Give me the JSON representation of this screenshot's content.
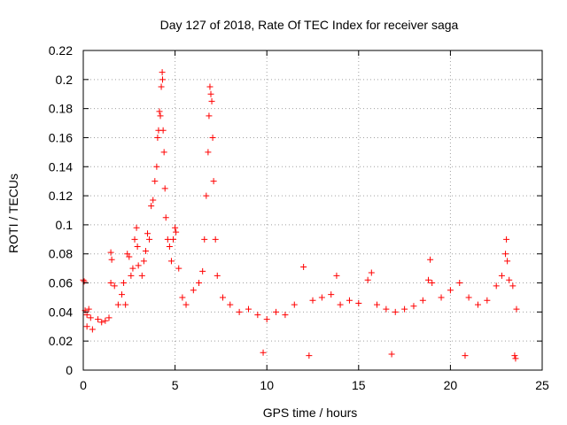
{
  "chart_data": {
    "type": "scatter",
    "title": "Day 127 of 2018, Rate Of TEC Index for receiver saga",
    "xlabel": "GPS time / hours",
    "ylabel": "ROTI / TECUs",
    "xlim": [
      0,
      25
    ],
    "ylim": [
      0,
      0.22
    ],
    "x_ticks": [
      0,
      5,
      10,
      15,
      20,
      25
    ],
    "x_tick_labels": [
      "0",
      "5",
      "10",
      "15",
      "20",
      "25"
    ],
    "y_ticks": [
      0,
      0.02,
      0.04,
      0.06,
      0.08,
      0.1,
      0.12,
      0.14,
      0.16,
      0.18,
      0.2,
      0.22
    ],
    "y_tick_labels": [
      "0",
      "0.02",
      "0.04",
      "0.06",
      "0.08",
      "0.1",
      "0.12",
      "0.14",
      "0.16",
      "0.18",
      "0.2",
      "0.22"
    ],
    "grid": true,
    "marker": "plus",
    "color": "#ff0000",
    "series": [
      {
        "name": "ROTI",
        "points": [
          [
            0.0,
            0.062
          ],
          [
            0.05,
            0.061
          ],
          [
            0.1,
            0.041
          ],
          [
            0.2,
            0.038
          ],
          [
            0.3,
            0.042
          ],
          [
            0.4,
            0.036
          ],
          [
            0.2,
            0.03
          ],
          [
            0.5,
            0.028
          ],
          [
            0.8,
            0.035
          ],
          [
            1.0,
            0.033
          ],
          [
            1.2,
            0.034
          ],
          [
            1.4,
            0.036
          ],
          [
            1.5,
            0.081
          ],
          [
            1.55,
            0.076
          ],
          [
            1.5,
            0.06
          ],
          [
            1.7,
            0.058
          ],
          [
            1.9,
            0.045
          ],
          [
            2.1,
            0.052
          ],
          [
            2.2,
            0.06
          ],
          [
            2.3,
            0.045
          ],
          [
            2.4,
            0.08
          ],
          [
            2.5,
            0.078
          ],
          [
            2.6,
            0.065
          ],
          [
            2.7,
            0.07
          ],
          [
            2.8,
            0.09
          ],
          [
            2.9,
            0.098
          ],
          [
            2.95,
            0.085
          ],
          [
            3.0,
            0.072
          ],
          [
            3.2,
            0.065
          ],
          [
            3.3,
            0.075
          ],
          [
            3.4,
            0.082
          ],
          [
            3.5,
            0.094
          ],
          [
            3.6,
            0.09
          ],
          [
            3.7,
            0.113
          ],
          [
            3.8,
            0.117
          ],
          [
            3.9,
            0.13
          ],
          [
            4.0,
            0.14
          ],
          [
            4.05,
            0.16
          ],
          [
            4.1,
            0.165
          ],
          [
            4.15,
            0.178
          ],
          [
            4.2,
            0.175
          ],
          [
            4.25,
            0.195
          ],
          [
            4.3,
            0.205
          ],
          [
            4.32,
            0.2
          ],
          [
            4.35,
            0.165
          ],
          [
            4.4,
            0.15
          ],
          [
            4.45,
            0.125
          ],
          [
            4.5,
            0.105
          ],
          [
            4.6,
            0.09
          ],
          [
            4.7,
            0.085
          ],
          [
            4.8,
            0.075
          ],
          [
            4.9,
            0.09
          ],
          [
            5.0,
            0.098
          ],
          [
            5.05,
            0.095
          ],
          [
            5.2,
            0.07
          ],
          [
            5.4,
            0.05
          ],
          [
            5.6,
            0.045
          ],
          [
            6.0,
            0.055
          ],
          [
            6.3,
            0.06
          ],
          [
            6.5,
            0.068
          ],
          [
            6.6,
            0.09
          ],
          [
            6.7,
            0.12
          ],
          [
            6.8,
            0.15
          ],
          [
            6.85,
            0.175
          ],
          [
            6.9,
            0.195
          ],
          [
            6.95,
            0.19
          ],
          [
            7.0,
            0.185
          ],
          [
            7.05,
            0.16
          ],
          [
            7.1,
            0.13
          ],
          [
            7.2,
            0.09
          ],
          [
            7.3,
            0.065
          ],
          [
            7.6,
            0.05
          ],
          [
            8.0,
            0.045
          ],
          [
            8.5,
            0.04
          ],
          [
            9.0,
            0.042
          ],
          [
            9.5,
            0.038
          ],
          [
            10.0,
            0.035
          ],
          [
            10.5,
            0.04
          ],
          [
            11.0,
            0.038
          ],
          [
            11.5,
            0.045
          ],
          [
            12.0,
            0.071
          ],
          [
            12.5,
            0.048
          ],
          [
            13.0,
            0.05
          ],
          [
            13.5,
            0.052
          ],
          [
            13.8,
            0.065
          ],
          [
            14.0,
            0.045
          ],
          [
            14.5,
            0.048
          ],
          [
            15.0,
            0.046
          ],
          [
            15.5,
            0.062
          ],
          [
            15.7,
            0.067
          ],
          [
            16.0,
            0.045
          ],
          [
            16.5,
            0.042
          ],
          [
            17.0,
            0.04
          ],
          [
            17.5,
            0.042
          ],
          [
            18.0,
            0.044
          ],
          [
            18.5,
            0.048
          ],
          [
            18.8,
            0.062
          ],
          [
            18.9,
            0.076
          ],
          [
            19.0,
            0.06
          ],
          [
            19.5,
            0.05
          ],
          [
            20.0,
            0.055
          ],
          [
            20.5,
            0.06
          ],
          [
            21.0,
            0.05
          ],
          [
            21.5,
            0.045
          ],
          [
            22.0,
            0.048
          ],
          [
            22.5,
            0.058
          ],
          [
            22.8,
            0.065
          ],
          [
            23.0,
            0.08
          ],
          [
            23.05,
            0.09
          ],
          [
            23.1,
            0.075
          ],
          [
            23.2,
            0.062
          ],
          [
            23.4,
            0.058
          ],
          [
            23.6,
            0.042
          ],
          [
            23.5,
            0.01
          ],
          [
            23.55,
            0.008
          ],
          [
            9.8,
            0.012
          ],
          [
            12.3,
            0.01
          ],
          [
            16.8,
            0.011
          ],
          [
            20.8,
            0.01
          ]
        ]
      }
    ]
  }
}
